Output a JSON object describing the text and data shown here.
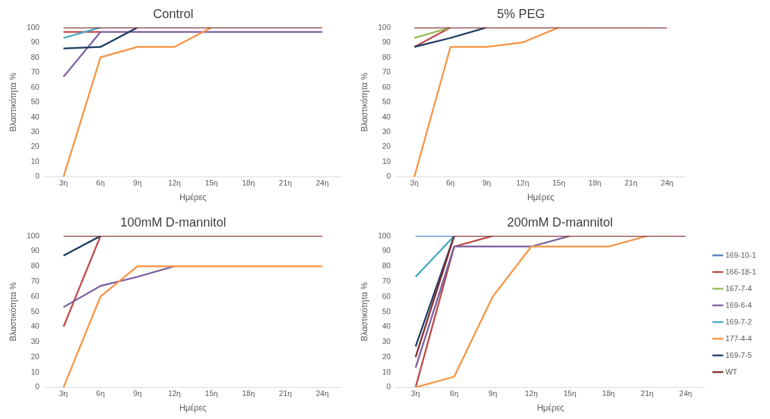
{
  "chart_data": [
    {
      "type": "line",
      "title": "Control",
      "xlabel": "Ημέρες",
      "ylabel": "Βλαστικότητα %",
      "categories": [
        "3η",
        "6η",
        "9η",
        "12η",
        "15η",
        "18η",
        "21η",
        "24η"
      ],
      "ylim": [
        0,
        100
      ],
      "yticks": [
        0,
        10,
        20,
        30,
        40,
        50,
        60,
        70,
        80,
        90,
        100
      ],
      "grid": false,
      "legend": false,
      "marker": "none",
      "series": [
        {
          "color": "#be4b48",
          "values": [
            97,
            97,
            null,
            null,
            null,
            null,
            null,
            null
          ]
        },
        {
          "color": "#7d60a0",
          "values": [
            67,
            97,
            97,
            97,
            97,
            97,
            97,
            97
          ]
        },
        {
          "color": "#46aac5",
          "values": [
            93,
            100,
            null,
            null,
            null,
            null,
            null,
            null
          ]
        },
        {
          "color": "#f79646",
          "values": [
            0,
            80,
            87,
            87,
            100,
            null,
            null,
            null
          ]
        },
        {
          "color": "#1f3d64",
          "values": [
            86,
            87,
            100,
            null,
            null,
            null,
            null,
            null
          ]
        },
        {
          "color": "#7f2f2f",
          "values": [
            100,
            100,
            100,
            100,
            100,
            100,
            100,
            100
          ]
        }
      ]
    },
    {
      "type": "line",
      "title": "5% PEG",
      "xlabel": "Ημέρες",
      "ylabel": "Βλαστικότητα %",
      "categories": [
        "3η",
        "6η",
        "9η",
        "12η",
        "15η",
        "18η",
        "21η",
        "24η"
      ],
      "ylim": [
        0,
        100
      ],
      "yticks": [
        0,
        10,
        20,
        30,
        40,
        50,
        60,
        70,
        80,
        90,
        100
      ],
      "grid": false,
      "legend": false,
      "marker": "none",
      "series": [
        {
          "color": "#be4b48",
          "values": [
            87,
            100,
            null,
            null,
            null,
            null,
            null,
            null
          ]
        },
        {
          "color": "#98b954",
          "values": [
            93,
            100,
            null,
            null,
            null,
            null,
            null,
            null
          ]
        },
        {
          "color": "#f79646",
          "values": [
            0,
            87,
            87,
            90,
            100,
            null,
            null,
            null
          ]
        },
        {
          "color": "#1f3d64",
          "values": [
            87,
            93,
            100,
            null,
            null,
            null,
            null,
            null
          ]
        },
        {
          "color": "#7f2f2f",
          "values": [
            100,
            100,
            100,
            100,
            100,
            100,
            100,
            100
          ]
        }
      ]
    },
    {
      "type": "line",
      "title": "100mM D-mannitol",
      "xlabel": "Ημέρες",
      "ylabel": "Βλαστικότητα %",
      "categories": [
        "3η",
        "6η",
        "9η",
        "12η",
        "15η",
        "18η",
        "21η",
        "24η"
      ],
      "ylim": [
        0,
        100
      ],
      "yticks": [
        0,
        10,
        20,
        30,
        40,
        50,
        60,
        70,
        80,
        90,
        100
      ],
      "grid": false,
      "legend": false,
      "marker": "none",
      "series": [
        {
          "color": "#be4b48",
          "values": [
            40,
            100,
            null,
            null,
            null,
            null,
            null,
            null
          ]
        },
        {
          "color": "#7d60a0",
          "values": [
            53,
            67,
            73,
            80,
            null,
            null,
            null,
            null
          ]
        },
        {
          "color": "#f79646",
          "values": [
            0,
            60,
            80,
            80,
            80,
            80,
            80,
            80
          ]
        },
        {
          "color": "#1f3d64",
          "values": [
            87,
            100,
            null,
            null,
            null,
            null,
            null,
            null
          ]
        },
        {
          "color": "#7f2f2f",
          "values": [
            100,
            100,
            100,
            100,
            100,
            100,
            100,
            100
          ]
        }
      ]
    },
    {
      "type": "line",
      "title": "200mM D-mannitol",
      "xlabel": "Ημέρες",
      "ylabel": "Βλαστικότητα %",
      "categories": [
        "3η",
        "6η",
        "9η",
        "12η",
        "15η",
        "18η",
        "21η",
        "24η"
      ],
      "ylim": [
        0,
        100
      ],
      "yticks": [
        0,
        10,
        20,
        30,
        40,
        50,
        60,
        70,
        80,
        90,
        100
      ],
      "grid": false,
      "legend": "right",
      "marker": "none",
      "series": [
        {
          "name": "169-10-1",
          "color": "#4a7ebb",
          "values": [
            100,
            100,
            null,
            null,
            null,
            null,
            null,
            null
          ]
        },
        {
          "name": "166-18-1",
          "color": "#be4b48",
          "values": [
            0,
            93,
            100,
            null,
            null,
            null,
            null,
            null
          ]
        },
        {
          "name": "167-7-4",
          "color": "#98b954",
          "values": [
            null,
            null,
            null,
            null,
            null,
            null,
            null,
            null
          ]
        },
        {
          "name": "169-6-4",
          "color": "#7d60a0",
          "values": [
            13,
            93,
            93,
            93,
            100,
            null,
            null,
            null
          ]
        },
        {
          "name": "169-7-2",
          "color": "#46aac5",
          "values": [
            73,
            100,
            null,
            null,
            null,
            null,
            null,
            null
          ]
        },
        {
          "name": "177-4-4",
          "color": "#f79646",
          "values": [
            0,
            7,
            60,
            93,
            93,
            93,
            100,
            null
          ]
        },
        {
          "name": "169-7-5",
          "color": "#1f3d64",
          "values": [
            27,
            100,
            null,
            null,
            null,
            null,
            null,
            null
          ]
        },
        {
          "name": "WT",
          "color": "#7f2f2f",
          "values": [
            20,
            100,
            100,
            100,
            100,
            100,
            100,
            100
          ]
        }
      ]
    }
  ]
}
